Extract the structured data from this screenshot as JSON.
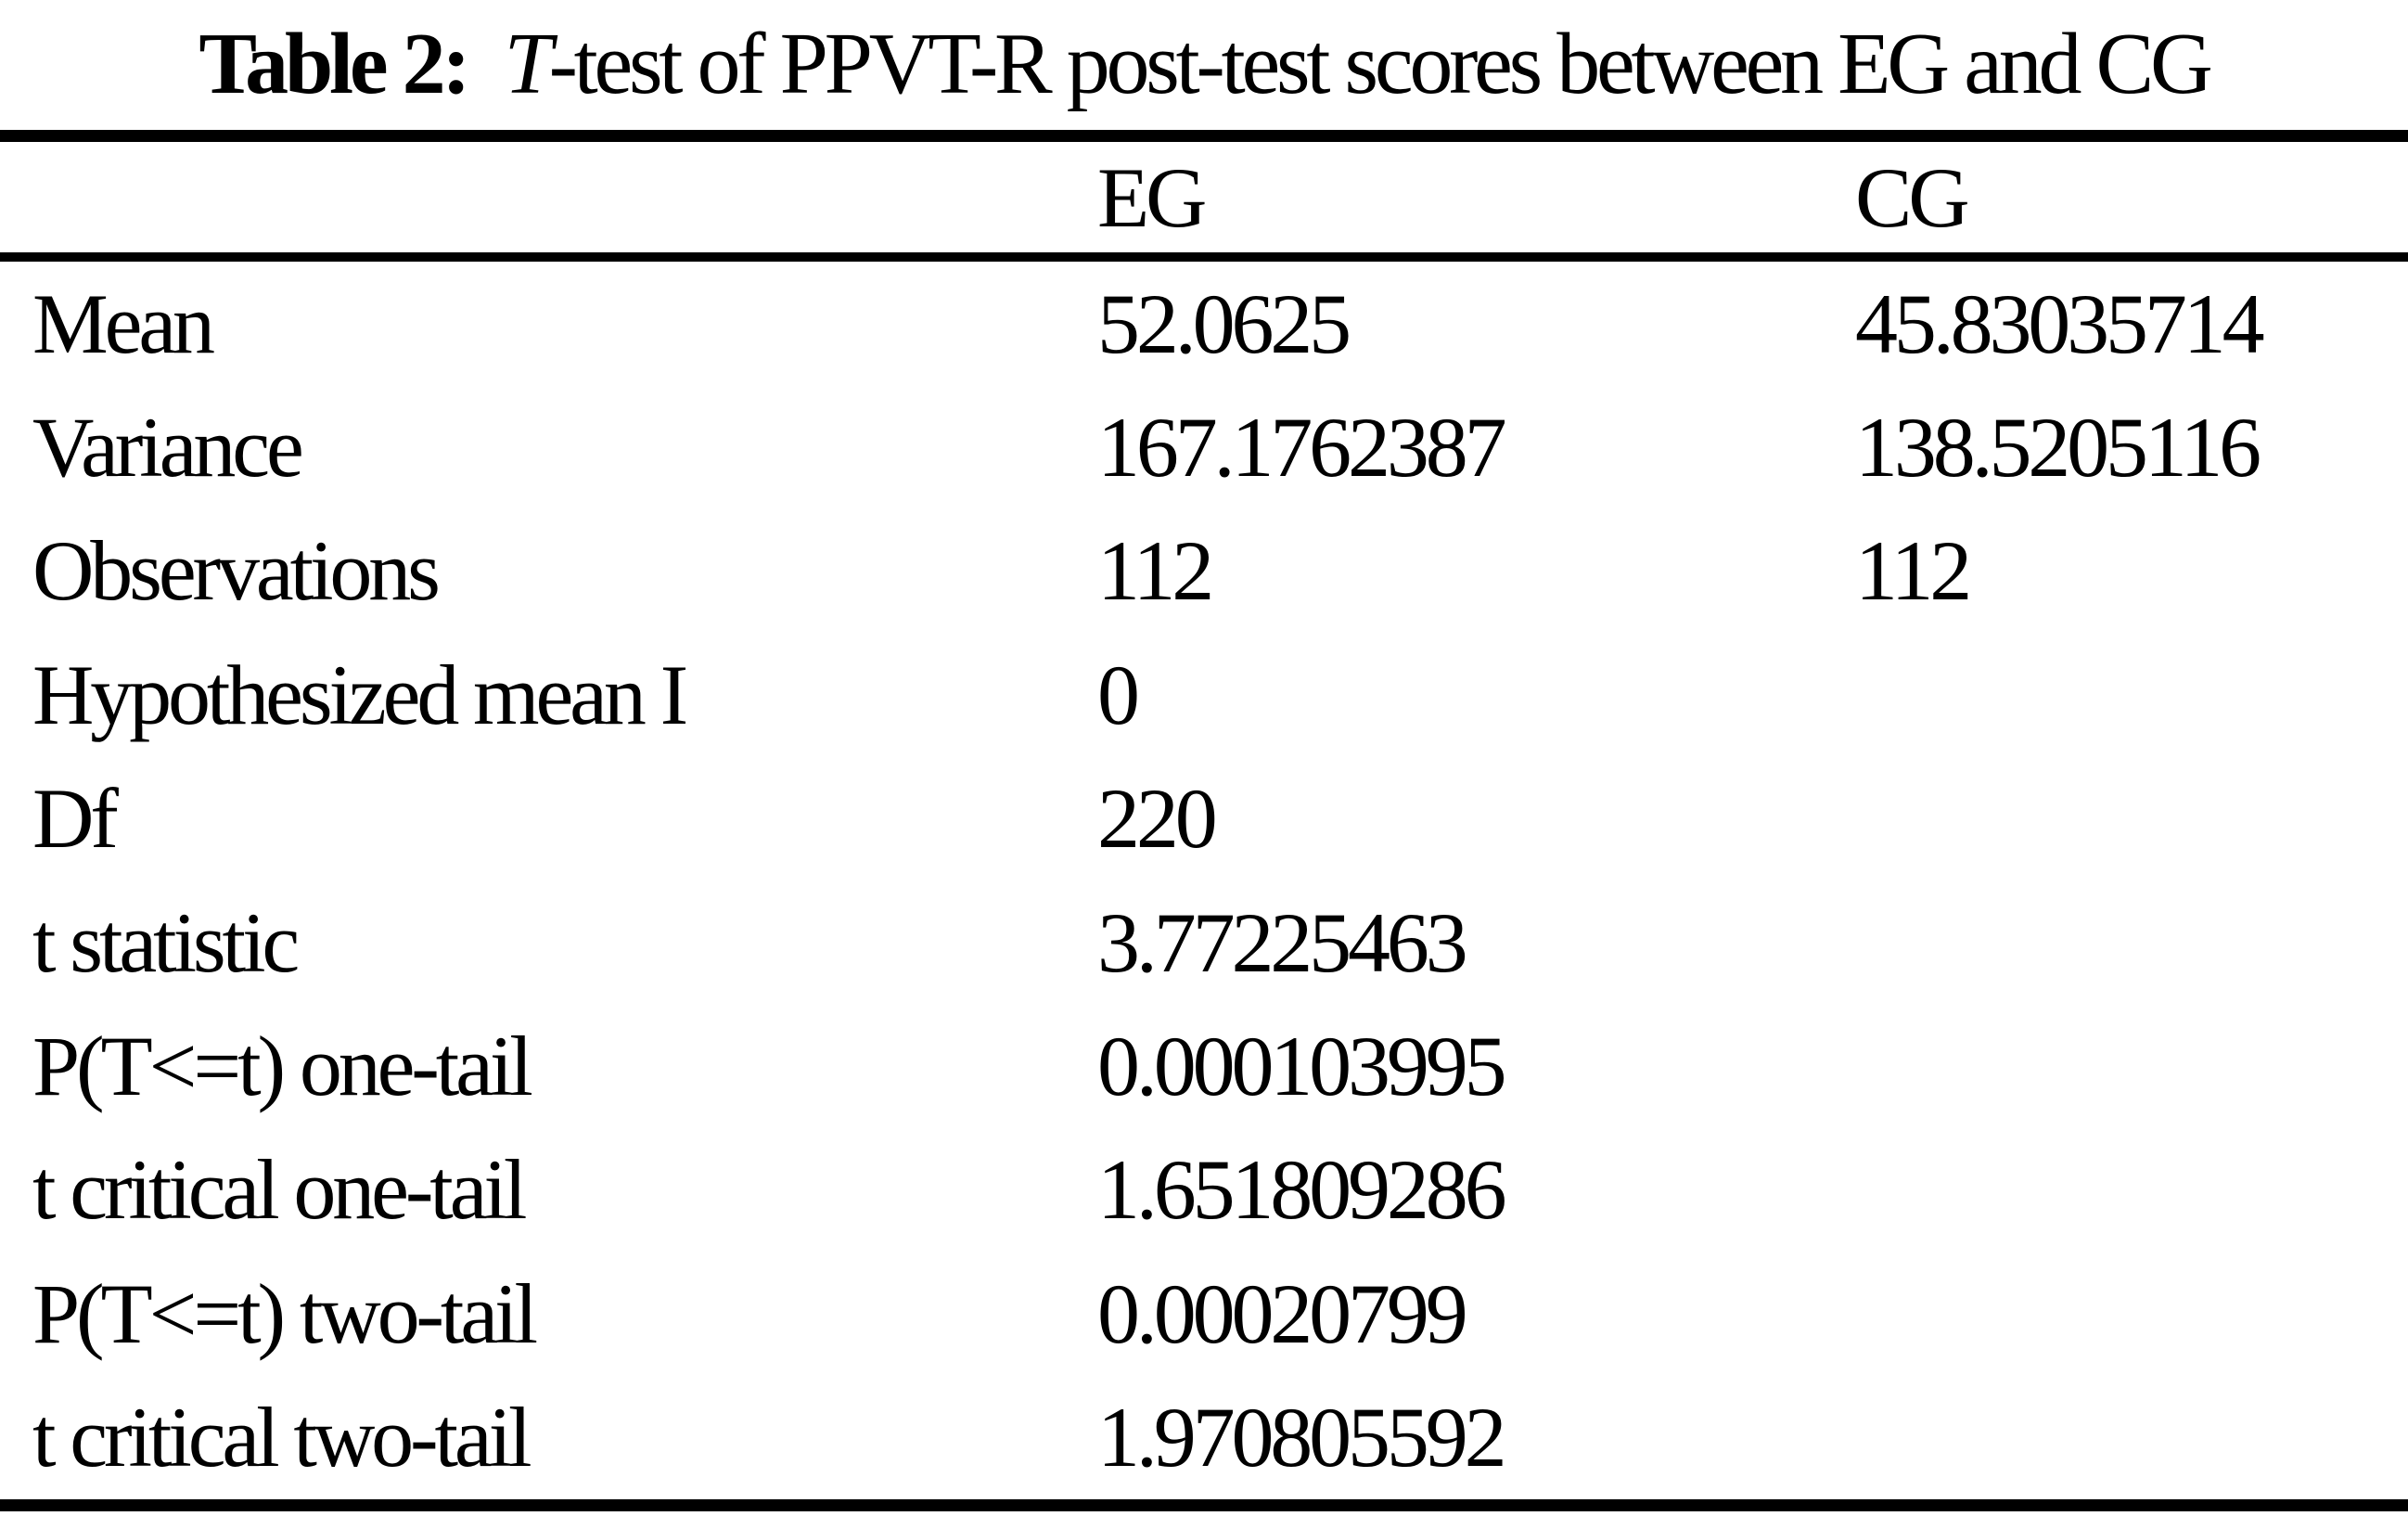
{
  "caption": {
    "prefix": "Table 2:",
    "italic_t": "T",
    "rest": "-test of PPVT-R post-test scores between EG and CG"
  },
  "table": {
    "columns": [
      "",
      "EG",
      "CG"
    ],
    "rows": [
      {
        "label": "Mean",
        "eg": "52.0625",
        "cg": "45.83035714"
      },
      {
        "label": "Variance",
        "eg": "167.1762387",
        "cg": "138.5205116"
      },
      {
        "label": "Observations",
        "eg": "112",
        "cg": "112"
      },
      {
        "label": "Hypothesized mean I",
        "eg": "0",
        "cg": ""
      },
      {
        "label": "Df",
        "eg": "220",
        "cg": ""
      },
      {
        "label": "t statistic",
        "eg": "3.77225463",
        "cg": ""
      },
      {
        "label": "P(T<=t) one-tail",
        "eg": "0.000103995",
        "cg": ""
      },
      {
        "label": "t critical one-tail",
        "eg": "1.651809286",
        "cg": ""
      },
      {
        "label": "P(T<=t) two-tail",
        "eg": "0.00020799",
        "cg": ""
      },
      {
        "label": "t critical two-tail",
        "eg": "1.970805592",
        "cg": ""
      }
    ]
  }
}
